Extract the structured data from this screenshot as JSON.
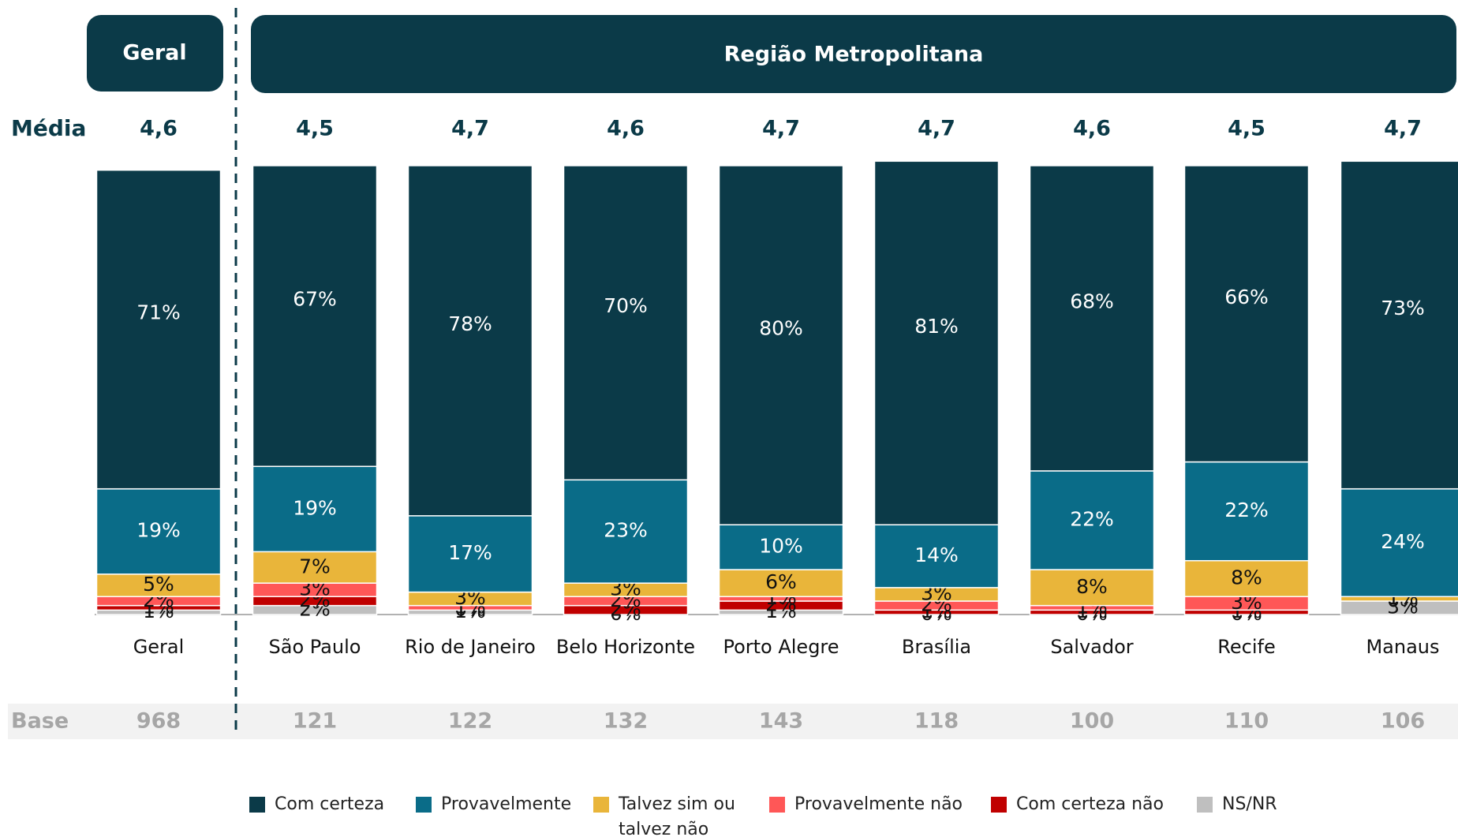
{
  "chart_data": {
    "type": "stacked_bar",
    "groups": [
      {
        "label": "Geral"
      },
      {
        "label": "Região Metropolitana"
      }
    ],
    "mean_label": "Média",
    "means": [
      "4,6",
      "4,5",
      "4,7",
      "4,6",
      "4,7",
      "4,7",
      "4,6",
      "4,5",
      "4,7"
    ],
    "base_label": "Base",
    "bases": [
      968,
      121,
      122,
      132,
      143,
      118,
      100,
      110,
      106
    ],
    "categories": [
      "Geral",
      "São Paulo",
      "Rio de Janeiro",
      "Belo Horizonte",
      "Porto Alegre",
      "Brasília",
      "Salvador",
      "Recife",
      "Manaus"
    ],
    "ylim": [
      0,
      100
    ],
    "series": [
      {
        "name": "Com certeza",
        "color": "#0b3a48",
        "values": [
          71,
          67,
          78,
          70,
          80,
          81,
          68,
          66,
          73
        ],
        "value_labels": [
          "71%",
          "67%",
          "78%",
          "70%",
          "80%",
          "81%",
          "68%",
          "66%",
          "73%"
        ]
      },
      {
        "name": "Provavelmente",
        "color": "#0a6c88",
        "values": [
          19,
          19,
          17,
          23,
          10,
          14,
          22,
          22,
          24
        ],
        "value_labels": [
          "19%",
          "19%",
          "17%",
          "23%",
          "10%",
          "14%",
          "22%",
          "22%",
          "24%"
        ]
      },
      {
        "name": "Talvez sim ou talvez não",
        "color": "#e9b53a",
        "values": [
          5,
          7,
          3,
          3,
          6,
          3,
          8,
          8,
          1
        ],
        "value_labels": [
          "5%",
          "7%",
          "3%",
          "3%",
          "6%",
          "3%",
          "8%",
          "8%",
          "1%"
        ]
      },
      {
        "name": "Provavelmente não",
        "color": "#ff5757",
        "values": [
          2,
          3,
          1,
          2,
          1,
          2,
          1,
          3,
          0
        ],
        "value_labels": [
          "2%",
          "3%",
          "1%",
          "2%",
          "1%",
          "2%",
          "1%",
          "3%",
          "0%"
        ]
      },
      {
        "name": "Com certeza não",
        "color": "#c00000",
        "values": [
          1,
          2,
          0,
          2,
          2,
          1,
          1,
          1,
          0
        ],
        "value_labels": [
          "1%",
          "2%",
          "0%",
          "2%",
          "2%",
          "1%",
          "1%",
          "1%",
          "0%"
        ]
      },
      {
        "name": "NS/NR",
        "color": "#bfbfbf",
        "values": [
          1,
          2,
          1,
          0,
          1,
          0,
          0,
          0,
          3
        ],
        "value_labels": [
          "1%",
          "2%",
          "1%",
          "0%",
          "1%",
          "0%",
          "0%",
          "0%",
          "3%"
        ]
      }
    ]
  }
}
